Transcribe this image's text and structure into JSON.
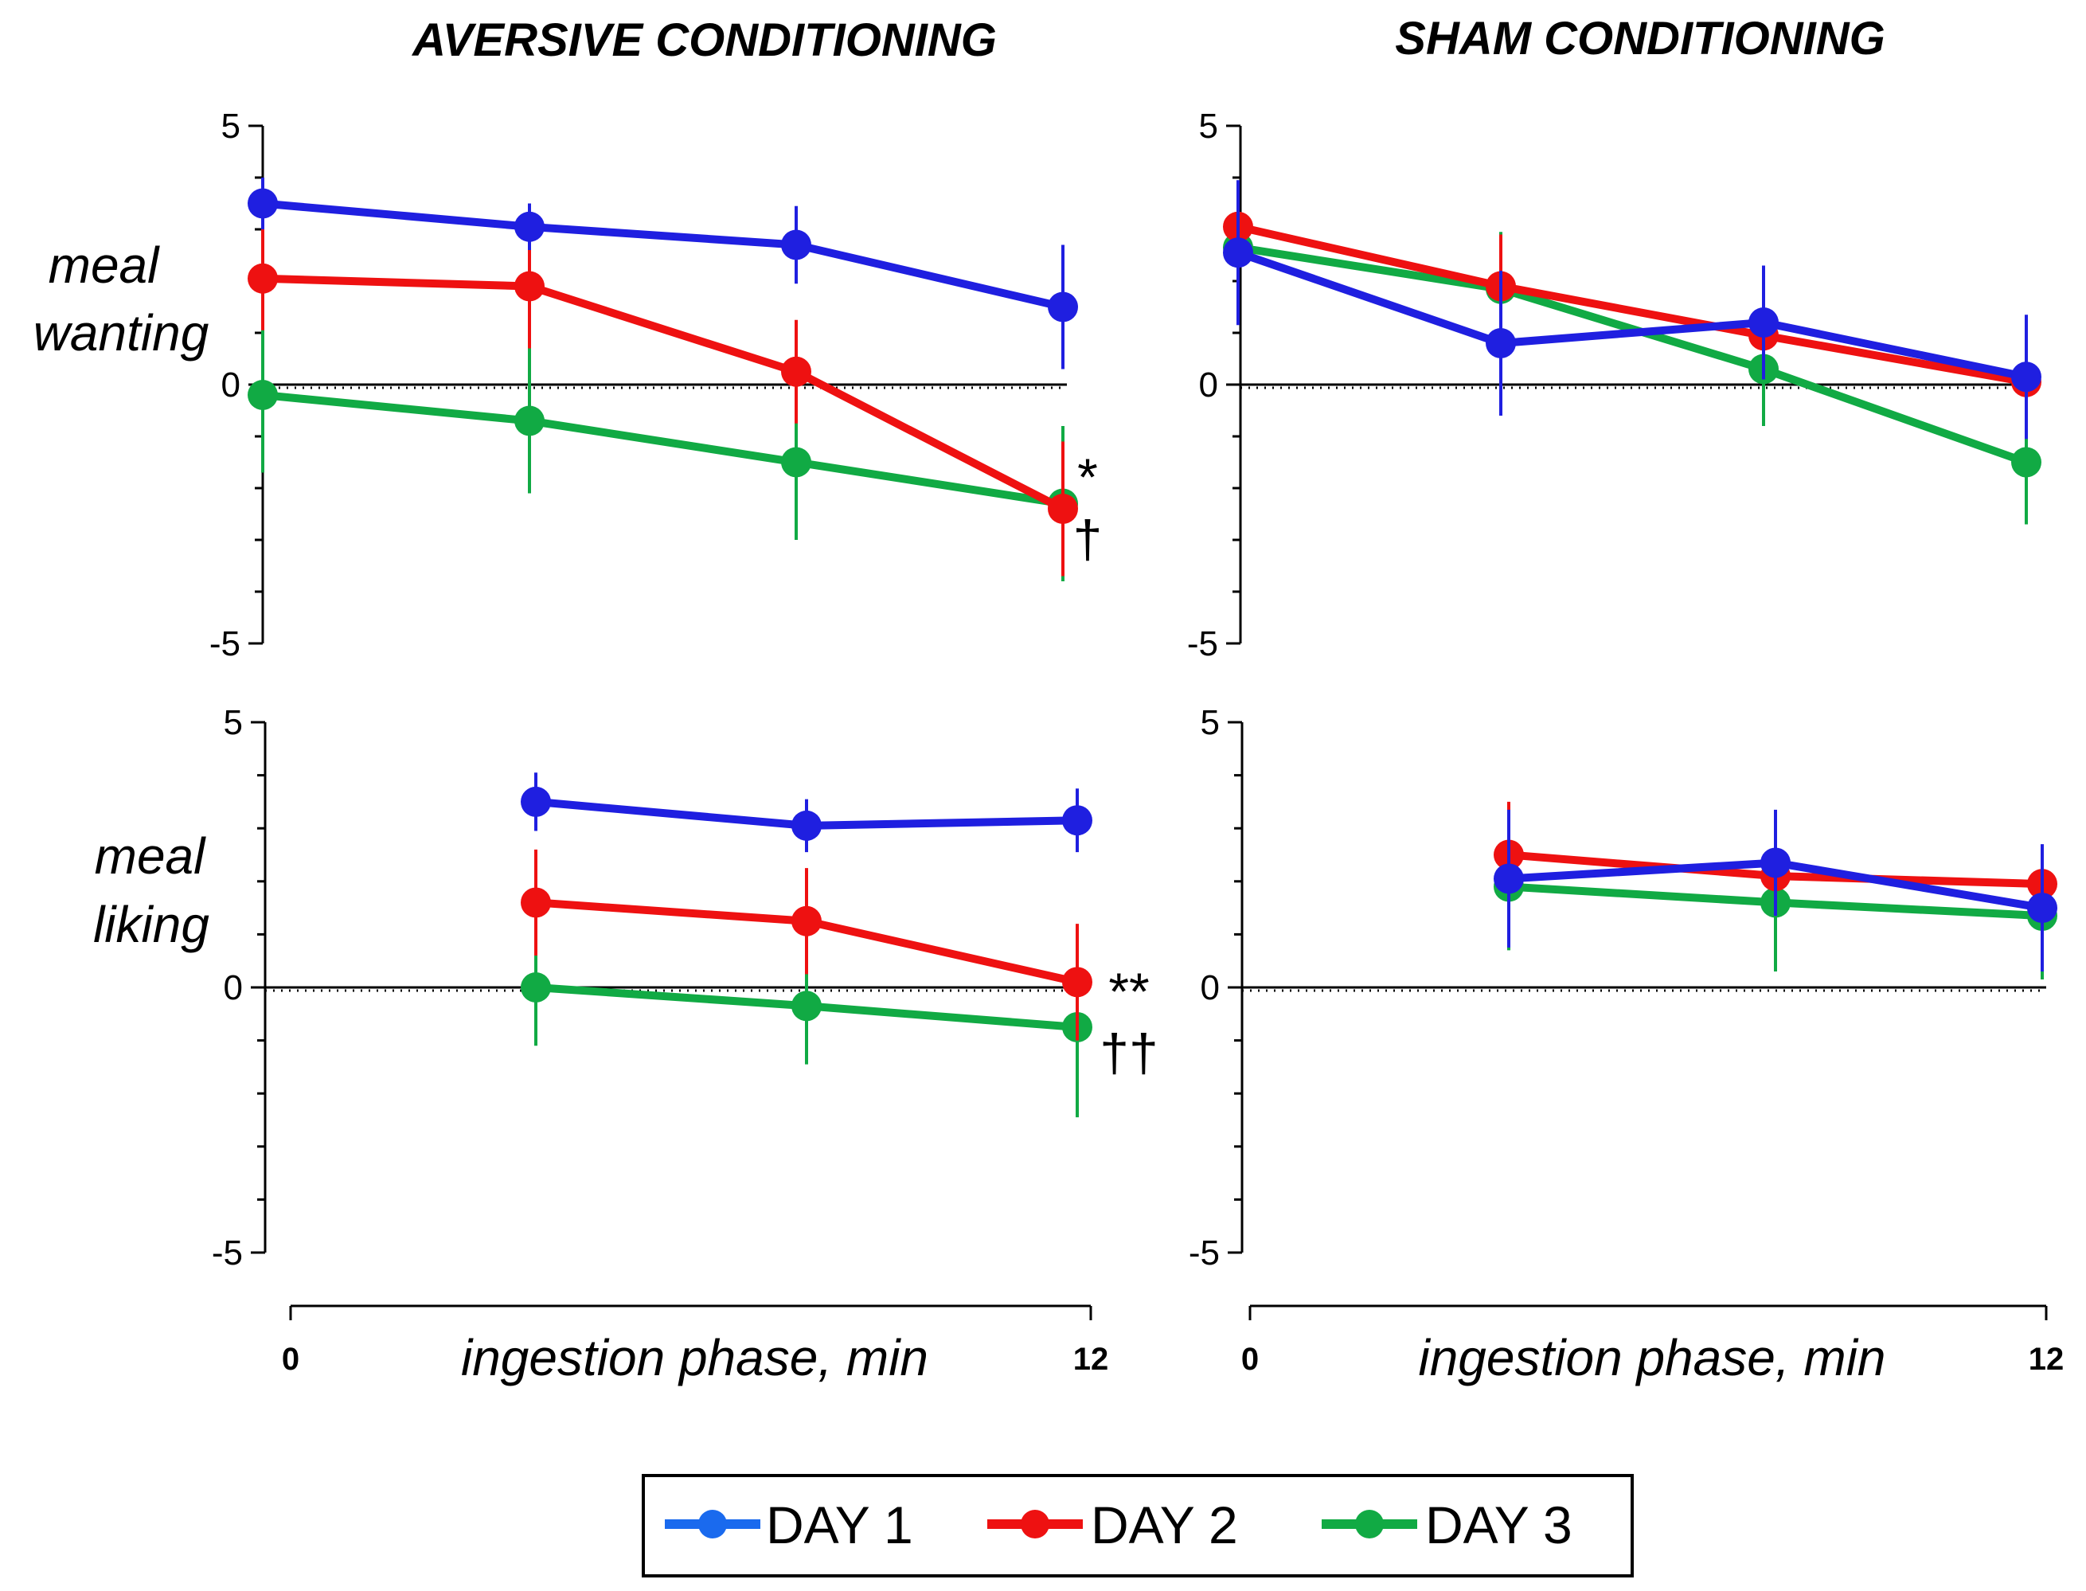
{
  "chart_data": [
    {
      "type": "line",
      "column_title": "AVERSIVE CONDITIONING",
      "ylabel": [
        "meal",
        "wanting"
      ],
      "ylim": [
        -5,
        5
      ],
      "yticks": [
        "5",
        "0",
        "-5"
      ],
      "x": [
        0,
        4,
        8,
        12
      ],
      "series": [
        {
          "name": "DAY 1",
          "values": [
            3.5,
            3.05,
            2.7,
            1.5
          ],
          "errors": [
            0.5,
            0.45,
            0.75,
            1.2
          ]
        },
        {
          "name": "DAY 2",
          "values": [
            2.05,
            1.9,
            0.25,
            -2.4
          ],
          "errors": [
            1.0,
            1.2,
            1.0,
            1.3
          ]
        },
        {
          "name": "DAY 3",
          "values": [
            -0.2,
            -0.7,
            -1.5,
            -2.3
          ],
          "errors": [
            1.5,
            1.4,
            1.5,
            1.5
          ]
        }
      ],
      "annotations": [
        "*",
        "†"
      ]
    },
    {
      "type": "line",
      "column_title": "SHAM CONDITIONING",
      "ylim": [
        -5,
        5
      ],
      "yticks": [
        "5",
        "0",
        "-5"
      ],
      "x": [
        0,
        4,
        8,
        12
      ],
      "series": [
        {
          "name": "DAY 1",
          "values": [
            2.55,
            0.8,
            1.2,
            0.15
          ],
          "errors": [
            1.4,
            1.4,
            1.1,
            1.2
          ]
        },
        {
          "name": "DAY 2",
          "values": [
            3.05,
            1.9,
            0.95,
            0.05
          ],
          "errors": [
            0.6,
            1.0,
            0.8,
            0.8
          ]
        },
        {
          "name": "DAY 3",
          "values": [
            2.65,
            1.85,
            0.3,
            -1.5
          ],
          "errors": [
            0.5,
            1.1,
            1.1,
            1.2
          ]
        }
      ],
      "annotations": []
    },
    {
      "type": "line",
      "ylabel": [
        "meal",
        "liking"
      ],
      "ylim": [
        -5,
        5
      ],
      "yticks": [
        "5",
        "0",
        "-5"
      ],
      "x": [
        4,
        8,
        12
      ],
      "series": [
        {
          "name": "DAY 1",
          "values": [
            3.5,
            3.05,
            3.15
          ],
          "errors": [
            0.55,
            0.5,
            0.6
          ]
        },
        {
          "name": "DAY 2",
          "values": [
            1.6,
            1.25,
            0.1
          ],
          "errors": [
            1.0,
            1.0,
            1.1
          ]
        },
        {
          "name": "DAY 3",
          "values": [
            0.0,
            -0.35,
            -0.75
          ],
          "errors": [
            1.1,
            1.1,
            1.7
          ]
        }
      ],
      "annotations": [
        "**",
        "††"
      ]
    },
    {
      "type": "line",
      "ylim": [
        -5,
        5
      ],
      "yticks": [
        "5",
        "0",
        "-5"
      ],
      "x": [
        4,
        8,
        12
      ],
      "series": [
        {
          "name": "DAY 1",
          "values": [
            2.05,
            2.35,
            1.5
          ],
          "errors": [
            1.3,
            1.0,
            1.2
          ]
        },
        {
          "name": "DAY 2",
          "values": [
            2.5,
            2.1,
            1.95
          ],
          "errors": [
            1.0,
            0.6,
            0.7
          ]
        },
        {
          "name": "DAY 3",
          "values": [
            1.9,
            1.6,
            1.35
          ],
          "errors": [
            1.2,
            1.3,
            1.2
          ]
        }
      ],
      "annotations": []
    }
  ],
  "x_axes": [
    {
      "xlabel": "ingestion phase, min",
      "ticks": [
        "0",
        "12"
      ]
    },
    {
      "xlabel": "ingestion phase, min",
      "ticks": [
        "0",
        "12"
      ]
    }
  ],
  "legend": [
    {
      "label": "DAY 1",
      "color": "#1f1fe0"
    },
    {
      "label": "DAY 2",
      "color": "#ee1111"
    },
    {
      "label": "DAY 3",
      "color": "#11aa44"
    }
  ],
  "colors": {
    "DAY 1": "#1f1fe0",
    "DAY 2": "#ee1111",
    "DAY 3": "#11aa44",
    "legend_day1": "#1a6aee"
  }
}
